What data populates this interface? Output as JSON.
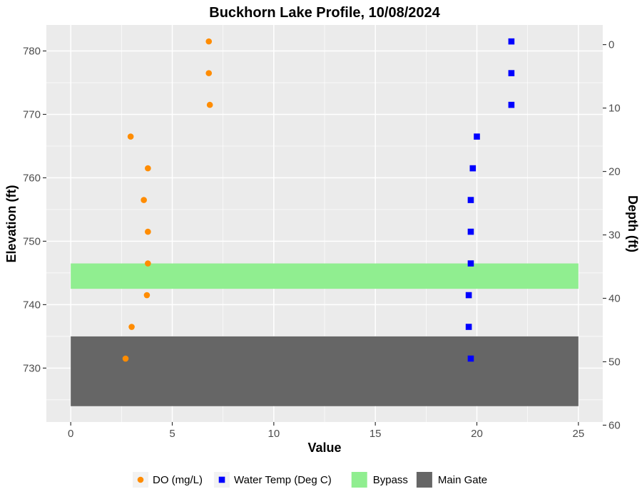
{
  "chart_data": {
    "type": "scatter",
    "title": "Buckhorn Lake Profile,  10/08/2024",
    "xlabel": "Value",
    "ylabel": "Elevation (ft)",
    "y2label": "Depth (ft)",
    "xlim": [
      -1.2,
      26.2
    ],
    "ylim": [
      721.5,
      784.1
    ],
    "y2lim": [
      -3.1,
      59.5
    ],
    "x_ticks": [
      0,
      5,
      10,
      15,
      20,
      25
    ],
    "y_ticks": [
      730,
      740,
      750,
      760,
      770,
      780
    ],
    "y2_ticks": [
      0,
      10,
      20,
      30,
      40,
      50,
      60
    ],
    "grid": true,
    "legend_position": "bottom",
    "colors": {
      "panel": "#ebebeb",
      "grid": "#ffffff",
      "do": "#ff8c00",
      "temp": "#0000ff",
      "bypass": "#90ee90",
      "main_gate": "#666666"
    },
    "bands": [
      {
        "name": "Bypass",
        "x": [
          0,
          25
        ],
        "y": [
          742.5,
          746.5
        ],
        "color": "#90ee90"
      },
      {
        "name": "Main Gate",
        "x": [
          0,
          25
        ],
        "y": [
          724,
          735
        ],
        "color": "#666666"
      }
    ],
    "series": [
      {
        "name": "DO (mg/L)",
        "shape": "circle",
        "color": "#ff8c00",
        "points": [
          {
            "x": 6.8,
            "y": 781.5
          },
          {
            "x": 6.8,
            "y": 776.5
          },
          {
            "x": 6.85,
            "y": 771.5
          },
          {
            "x": 2.95,
            "y": 766.5
          },
          {
            "x": 3.8,
            "y": 761.5
          },
          {
            "x": 3.6,
            "y": 756.5
          },
          {
            "x": 3.8,
            "y": 751.5
          },
          {
            "x": 3.8,
            "y": 746.5
          },
          {
            "x": 3.75,
            "y": 741.5
          },
          {
            "x": 3.0,
            "y": 736.5
          },
          {
            "x": 2.7,
            "y": 731.5
          }
        ]
      },
      {
        "name": "Water Temp (Deg C)",
        "shape": "square",
        "color": "#0000ff",
        "points": [
          {
            "x": 21.7,
            "y": 781.5
          },
          {
            "x": 21.7,
            "y": 776.5
          },
          {
            "x": 21.7,
            "y": 771.5
          },
          {
            "x": 20.0,
            "y": 766.5
          },
          {
            "x": 19.8,
            "y": 761.5
          },
          {
            "x": 19.7,
            "y": 756.5
          },
          {
            "x": 19.7,
            "y": 751.5
          },
          {
            "x": 19.7,
            "y": 746.5
          },
          {
            "x": 19.6,
            "y": 741.5
          },
          {
            "x": 19.6,
            "y": 736.5
          },
          {
            "x": 19.7,
            "y": 731.5
          }
        ]
      }
    ]
  }
}
